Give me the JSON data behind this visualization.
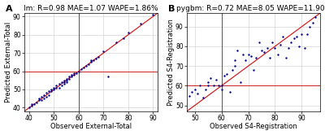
{
  "panel_A": {
    "label": "A",
    "title": "lm: R=0.98 MAE=1.07 WAPE=1.86%",
    "xlabel": "Observed External-Total",
    "ylabel": "Predicted External-Total",
    "xlim": [
      38,
      92
    ],
    "ylim": [
      38,
      92
    ],
    "xticks": [
      40,
      50,
      60,
      70,
      80,
      90
    ],
    "yticks": [
      40,
      50,
      60,
      70,
      80,
      90
    ],
    "crosshair": [
      60,
      60
    ],
    "scatter_x": [
      40,
      41,
      41,
      42,
      43,
      44,
      44,
      45,
      45,
      46,
      46,
      47,
      47,
      48,
      48,
      49,
      49,
      50,
      50,
      51,
      51,
      52,
      52,
      53,
      53,
      54,
      54,
      54,
      55,
      55,
      55,
      56,
      56,
      57,
      57,
      58,
      58,
      59,
      60,
      61,
      62,
      63,
      64,
      65,
      65,
      66,
      67,
      68,
      70,
      72,
      75,
      78,
      80,
      85,
      90
    ],
    "scatter_y": [
      40,
      41,
      42,
      42,
      43,
      44,
      45,
      44,
      46,
      45,
      47,
      46,
      48,
      47,
      49,
      49,
      50,
      50,
      51,
      51,
      52,
      51,
      53,
      52,
      54,
      53,
      55,
      54,
      55,
      56,
      54,
      56,
      57,
      57,
      58,
      58,
      59,
      59,
      60,
      61,
      62,
      63,
      64,
      65,
      66,
      66,
      67,
      68,
      71,
      57,
      76,
      78,
      81,
      86,
      91
    ]
  },
  "panel_B": {
    "label": "B",
    "title": "pygbm: R=0.72 MAE=8.05 WAPE=11.90%",
    "xlabel": "Observed S4-Registration",
    "ylabel": "Predicted S4-Registration",
    "xlim": [
      47,
      97
    ],
    "ylim": [
      47,
      97
    ],
    "xticks": [
      50,
      60,
      70,
      80,
      90
    ],
    "yticks": [
      50,
      60,
      70,
      80,
      90
    ],
    "crosshair": [
      60,
      60
    ],
    "scatter_x": [
      48,
      49,
      50,
      51,
      52,
      53,
      54,
      55,
      55,
      56,
      57,
      58,
      59,
      60,
      60,
      61,
      62,
      63,
      64,
      65,
      65,
      66,
      67,
      68,
      69,
      70,
      71,
      72,
      73,
      74,
      75,
      76,
      77,
      78,
      79,
      80,
      81,
      82,
      83,
      84,
      85,
      86,
      87,
      88,
      89,
      90,
      91,
      92,
      93,
      94,
      95
    ],
    "scatter_y": [
      55,
      57,
      58,
      56,
      60,
      54,
      58,
      60,
      62,
      64,
      60,
      63,
      60,
      58,
      60,
      65,
      66,
      57,
      68,
      70,
      73,
      78,
      62,
      76,
      73,
      76,
      75,
      68,
      74,
      82,
      78,
      77,
      79,
      74,
      82,
      79,
      76,
      81,
      85,
      74,
      79,
      82,
      84,
      85,
      80,
      86,
      79,
      86,
      90,
      92,
      95
    ]
  },
  "dot_color": "#00008B",
  "line_color": "#CC2222",
  "crosshair_color": "#CC2222",
  "bg_color": "#ffffff",
  "grid_color": "#cccccc",
  "title_fontsize": 6.5,
  "label_fontsize": 6,
  "tick_fontsize": 5.5,
  "panel_label_fontsize": 8,
  "scatter_size": 3
}
